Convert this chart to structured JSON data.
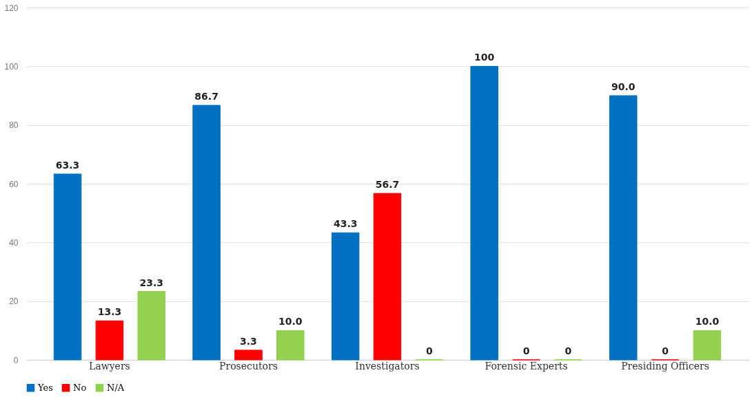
{
  "chart_data": {
    "type": "bar",
    "categories": [
      "Lawyers",
      "Prosecutors",
      "Investigators",
      "Forensic Experts",
      "Presiding Officers"
    ],
    "series": [
      {
        "name": "Yes",
        "color": "#0070c0",
        "values": [
          63.3,
          86.7,
          43.3,
          100,
          90.0
        ],
        "value_labels": [
          "63.3",
          "86.7",
          "43.3",
          "100",
          "90.0"
        ]
      },
      {
        "name": "No",
        "color": "#ff0000",
        "values": [
          13.3,
          3.3,
          56.7,
          0,
          0
        ],
        "value_labels": [
          "13.3",
          "3.3",
          "56.7",
          "0",
          "0"
        ]
      },
      {
        "name": "N/A",
        "color": "#92d050",
        "values": [
          23.3,
          10.0,
          0,
          0,
          10.0
        ],
        "value_labels": [
          "23.3",
          "10.0",
          "0",
          "0",
          "10.0"
        ]
      }
    ],
    "ylim": [
      0,
      120
    ],
    "yticks": [
      0,
      20,
      40,
      60,
      80,
      100,
      120
    ],
    "grid": "y",
    "legend": "bottom"
  }
}
